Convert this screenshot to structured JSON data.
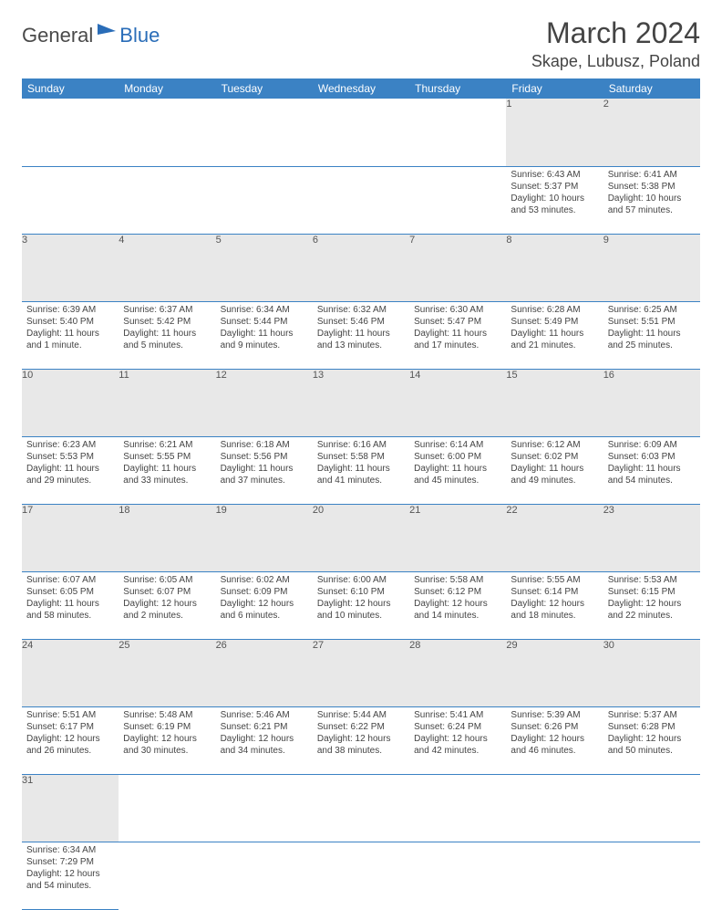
{
  "logo": {
    "text1": "General",
    "text2": "Blue"
  },
  "title": "March 2024",
  "location": "Skape, Lubusz, Poland",
  "colors": {
    "header_bg": "#3b82c4",
    "header_fg": "#ffffff",
    "daynum_bg": "#e8e8e8",
    "rule": "#3b82c4",
    "text": "#444444"
  },
  "weekdays": [
    "Sunday",
    "Monday",
    "Tuesday",
    "Wednesday",
    "Thursday",
    "Friday",
    "Saturday"
  ],
  "weeks": [
    [
      null,
      null,
      null,
      null,
      null,
      {
        "n": "1",
        "sr": "Sunrise: 6:43 AM",
        "ss": "Sunset: 5:37 PM",
        "dl": "Daylight: 10 hours and 53 minutes."
      },
      {
        "n": "2",
        "sr": "Sunrise: 6:41 AM",
        "ss": "Sunset: 5:38 PM",
        "dl": "Daylight: 10 hours and 57 minutes."
      }
    ],
    [
      {
        "n": "3",
        "sr": "Sunrise: 6:39 AM",
        "ss": "Sunset: 5:40 PM",
        "dl": "Daylight: 11 hours and 1 minute."
      },
      {
        "n": "4",
        "sr": "Sunrise: 6:37 AM",
        "ss": "Sunset: 5:42 PM",
        "dl": "Daylight: 11 hours and 5 minutes."
      },
      {
        "n": "5",
        "sr": "Sunrise: 6:34 AM",
        "ss": "Sunset: 5:44 PM",
        "dl": "Daylight: 11 hours and 9 minutes."
      },
      {
        "n": "6",
        "sr": "Sunrise: 6:32 AM",
        "ss": "Sunset: 5:46 PM",
        "dl": "Daylight: 11 hours and 13 minutes."
      },
      {
        "n": "7",
        "sr": "Sunrise: 6:30 AM",
        "ss": "Sunset: 5:47 PM",
        "dl": "Daylight: 11 hours and 17 minutes."
      },
      {
        "n": "8",
        "sr": "Sunrise: 6:28 AM",
        "ss": "Sunset: 5:49 PM",
        "dl": "Daylight: 11 hours and 21 minutes."
      },
      {
        "n": "9",
        "sr": "Sunrise: 6:25 AM",
        "ss": "Sunset: 5:51 PM",
        "dl": "Daylight: 11 hours and 25 minutes."
      }
    ],
    [
      {
        "n": "10",
        "sr": "Sunrise: 6:23 AM",
        "ss": "Sunset: 5:53 PM",
        "dl": "Daylight: 11 hours and 29 minutes."
      },
      {
        "n": "11",
        "sr": "Sunrise: 6:21 AM",
        "ss": "Sunset: 5:55 PM",
        "dl": "Daylight: 11 hours and 33 minutes."
      },
      {
        "n": "12",
        "sr": "Sunrise: 6:18 AM",
        "ss": "Sunset: 5:56 PM",
        "dl": "Daylight: 11 hours and 37 minutes."
      },
      {
        "n": "13",
        "sr": "Sunrise: 6:16 AM",
        "ss": "Sunset: 5:58 PM",
        "dl": "Daylight: 11 hours and 41 minutes."
      },
      {
        "n": "14",
        "sr": "Sunrise: 6:14 AM",
        "ss": "Sunset: 6:00 PM",
        "dl": "Daylight: 11 hours and 45 minutes."
      },
      {
        "n": "15",
        "sr": "Sunrise: 6:12 AM",
        "ss": "Sunset: 6:02 PM",
        "dl": "Daylight: 11 hours and 49 minutes."
      },
      {
        "n": "16",
        "sr": "Sunrise: 6:09 AM",
        "ss": "Sunset: 6:03 PM",
        "dl": "Daylight: 11 hours and 54 minutes."
      }
    ],
    [
      {
        "n": "17",
        "sr": "Sunrise: 6:07 AM",
        "ss": "Sunset: 6:05 PM",
        "dl": "Daylight: 11 hours and 58 minutes."
      },
      {
        "n": "18",
        "sr": "Sunrise: 6:05 AM",
        "ss": "Sunset: 6:07 PM",
        "dl": "Daylight: 12 hours and 2 minutes."
      },
      {
        "n": "19",
        "sr": "Sunrise: 6:02 AM",
        "ss": "Sunset: 6:09 PM",
        "dl": "Daylight: 12 hours and 6 minutes."
      },
      {
        "n": "20",
        "sr": "Sunrise: 6:00 AM",
        "ss": "Sunset: 6:10 PM",
        "dl": "Daylight: 12 hours and 10 minutes."
      },
      {
        "n": "21",
        "sr": "Sunrise: 5:58 AM",
        "ss": "Sunset: 6:12 PM",
        "dl": "Daylight: 12 hours and 14 minutes."
      },
      {
        "n": "22",
        "sr": "Sunrise: 5:55 AM",
        "ss": "Sunset: 6:14 PM",
        "dl": "Daylight: 12 hours and 18 minutes."
      },
      {
        "n": "23",
        "sr": "Sunrise: 5:53 AM",
        "ss": "Sunset: 6:15 PM",
        "dl": "Daylight: 12 hours and 22 minutes."
      }
    ],
    [
      {
        "n": "24",
        "sr": "Sunrise: 5:51 AM",
        "ss": "Sunset: 6:17 PM",
        "dl": "Daylight: 12 hours and 26 minutes."
      },
      {
        "n": "25",
        "sr": "Sunrise: 5:48 AM",
        "ss": "Sunset: 6:19 PM",
        "dl": "Daylight: 12 hours and 30 minutes."
      },
      {
        "n": "26",
        "sr": "Sunrise: 5:46 AM",
        "ss": "Sunset: 6:21 PM",
        "dl": "Daylight: 12 hours and 34 minutes."
      },
      {
        "n": "27",
        "sr": "Sunrise: 5:44 AM",
        "ss": "Sunset: 6:22 PM",
        "dl": "Daylight: 12 hours and 38 minutes."
      },
      {
        "n": "28",
        "sr": "Sunrise: 5:41 AM",
        "ss": "Sunset: 6:24 PM",
        "dl": "Daylight: 12 hours and 42 minutes."
      },
      {
        "n": "29",
        "sr": "Sunrise: 5:39 AM",
        "ss": "Sunset: 6:26 PM",
        "dl": "Daylight: 12 hours and 46 minutes."
      },
      {
        "n": "30",
        "sr": "Sunrise: 5:37 AM",
        "ss": "Sunset: 6:28 PM",
        "dl": "Daylight: 12 hours and 50 minutes."
      }
    ],
    [
      {
        "n": "31",
        "sr": "Sunrise: 6:34 AM",
        "ss": "Sunset: 7:29 PM",
        "dl": "Daylight: 12 hours and 54 minutes."
      },
      null,
      null,
      null,
      null,
      null,
      null
    ]
  ]
}
